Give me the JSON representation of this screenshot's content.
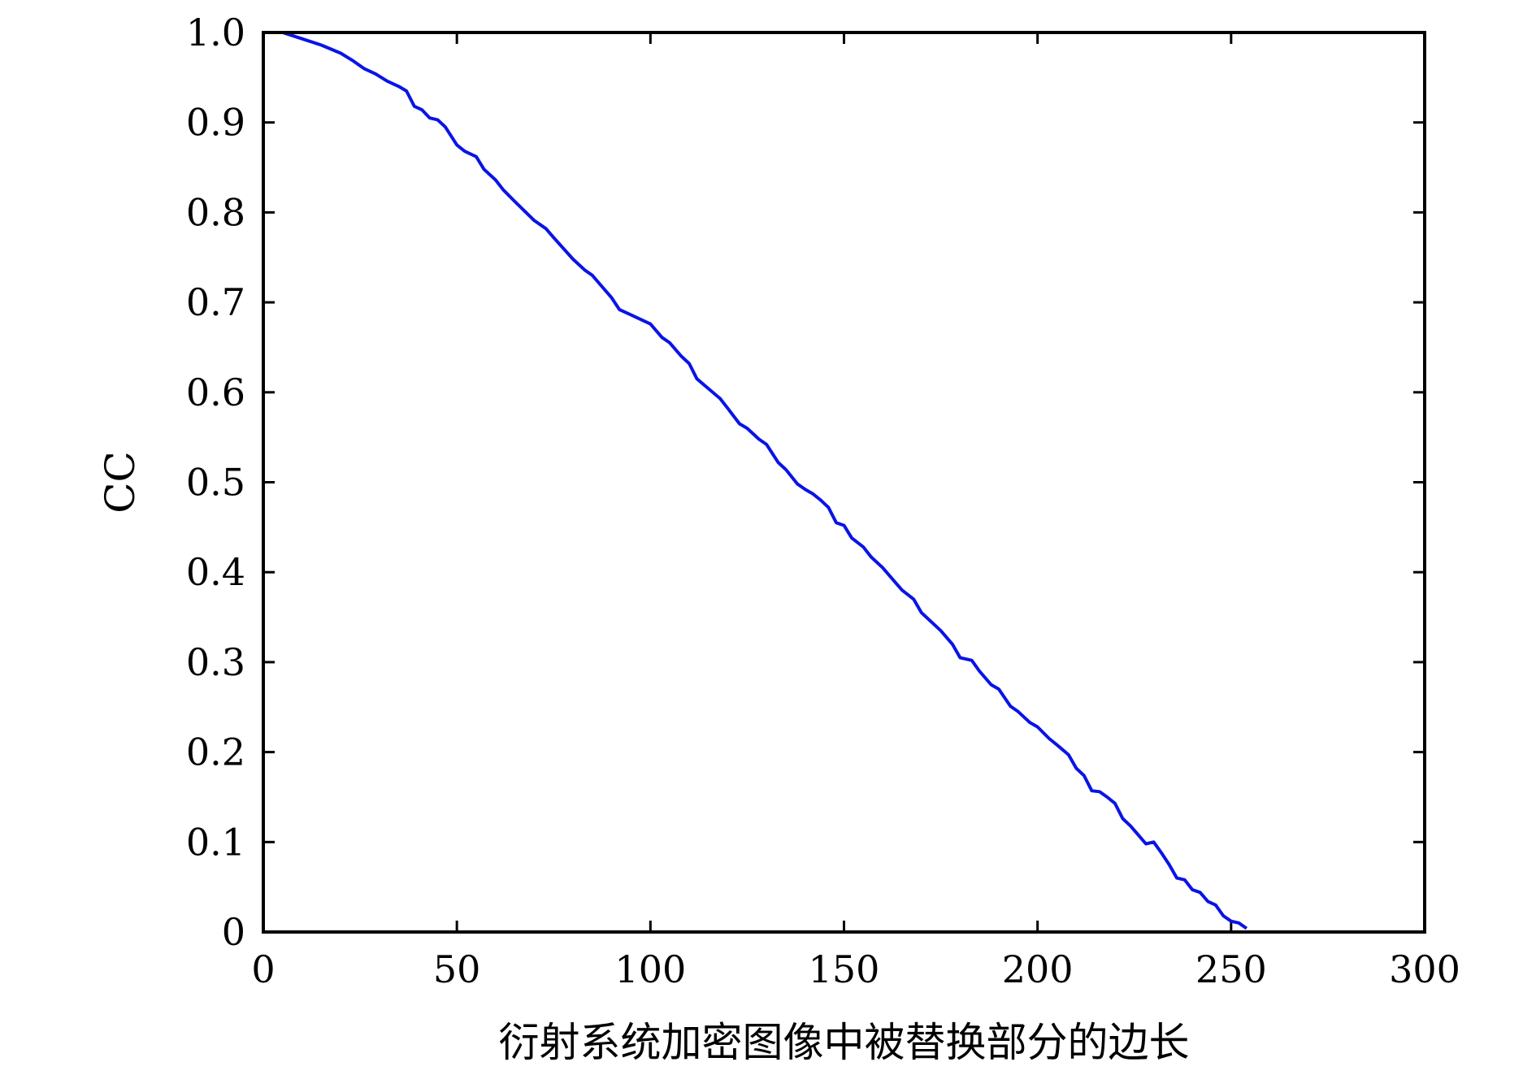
{
  "chart_data": {
    "type": "line",
    "title": "",
    "xlabel": "衍射系统加密图像中被替换部分的边长",
    "ylabel": "CC",
    "xlim": [
      0,
      300
    ],
    "ylim": [
      0,
      1.0
    ],
    "x_ticks": [
      0,
      50,
      100,
      150,
      200,
      250,
      300
    ],
    "x_tick_labels": [
      "0",
      "50",
      "100",
      "150",
      "200",
      "250",
      "300"
    ],
    "y_ticks": [
      0,
      0.1,
      0.2,
      0.3,
      0.4,
      0.5,
      0.6,
      0.7,
      0.8,
      0.9,
      1.0
    ],
    "y_tick_labels": [
      "0",
      "0.1",
      "0.2",
      "0.3",
      "0.4",
      "0.5",
      "0.6",
      "0.7",
      "0.8",
      "0.9",
      "1.0"
    ],
    "grid": false,
    "legend": "none",
    "series": [
      {
        "color": "#0a14e6",
        "x": [
          5,
          10,
          15,
          20,
          23,
          26,
          29,
          32,
          35,
          37,
          39,
          41,
          43,
          45,
          47,
          50,
          52,
          55,
          57,
          60,
          62,
          65,
          70,
          73,
          75,
          80,
          83,
          85,
          87,
          90,
          92,
          95,
          100,
          103,
          105,
          108,
          110,
          112,
          115,
          118,
          120,
          123,
          125,
          128,
          130,
          133,
          135,
          138,
          140,
          142,
          144,
          146,
          148,
          150,
          152,
          155,
          157,
          160,
          163,
          165,
          168,
          170,
          173,
          175,
          178,
          180,
          183,
          185,
          188,
          190,
          193,
          195,
          198,
          200,
          203,
          205,
          208,
          210,
          212,
          214,
          216,
          218,
          220,
          222,
          224,
          226,
          228,
          230,
          232,
          234,
          236,
          238,
          240,
          242,
          244,
          246,
          248,
          250,
          252,
          254
        ],
        "y": [
          1.0,
          0.993,
          0.986,
          0.977,
          0.969,
          0.96,
          0.954,
          0.946,
          0.94,
          0.935,
          0.918,
          0.914,
          0.905,
          0.903,
          0.895,
          0.875,
          0.868,
          0.862,
          0.848,
          0.836,
          0.825,
          0.812,
          0.791,
          0.782,
          0.772,
          0.748,
          0.736,
          0.73,
          0.72,
          0.705,
          0.692,
          0.686,
          0.676,
          0.661,
          0.655,
          0.64,
          0.632,
          0.615,
          0.604,
          0.593,
          0.582,
          0.565,
          0.56,
          0.548,
          0.542,
          0.522,
          0.514,
          0.498,
          0.492,
          0.487,
          0.48,
          0.472,
          0.455,
          0.452,
          0.438,
          0.428,
          0.417,
          0.405,
          0.39,
          0.38,
          0.37,
          0.355,
          0.343,
          0.335,
          0.32,
          0.305,
          0.302,
          0.29,
          0.275,
          0.27,
          0.251,
          0.245,
          0.233,
          0.228,
          0.215,
          0.208,
          0.197,
          0.182,
          0.174,
          0.157,
          0.156,
          0.15,
          0.143,
          0.126,
          0.118,
          0.108,
          0.098,
          0.1,
          0.088,
          0.075,
          0.06,
          0.058,
          0.047,
          0.044,
          0.034,
          0.03,
          0.018,
          0.012,
          0.01,
          0.004
        ]
      }
    ]
  }
}
